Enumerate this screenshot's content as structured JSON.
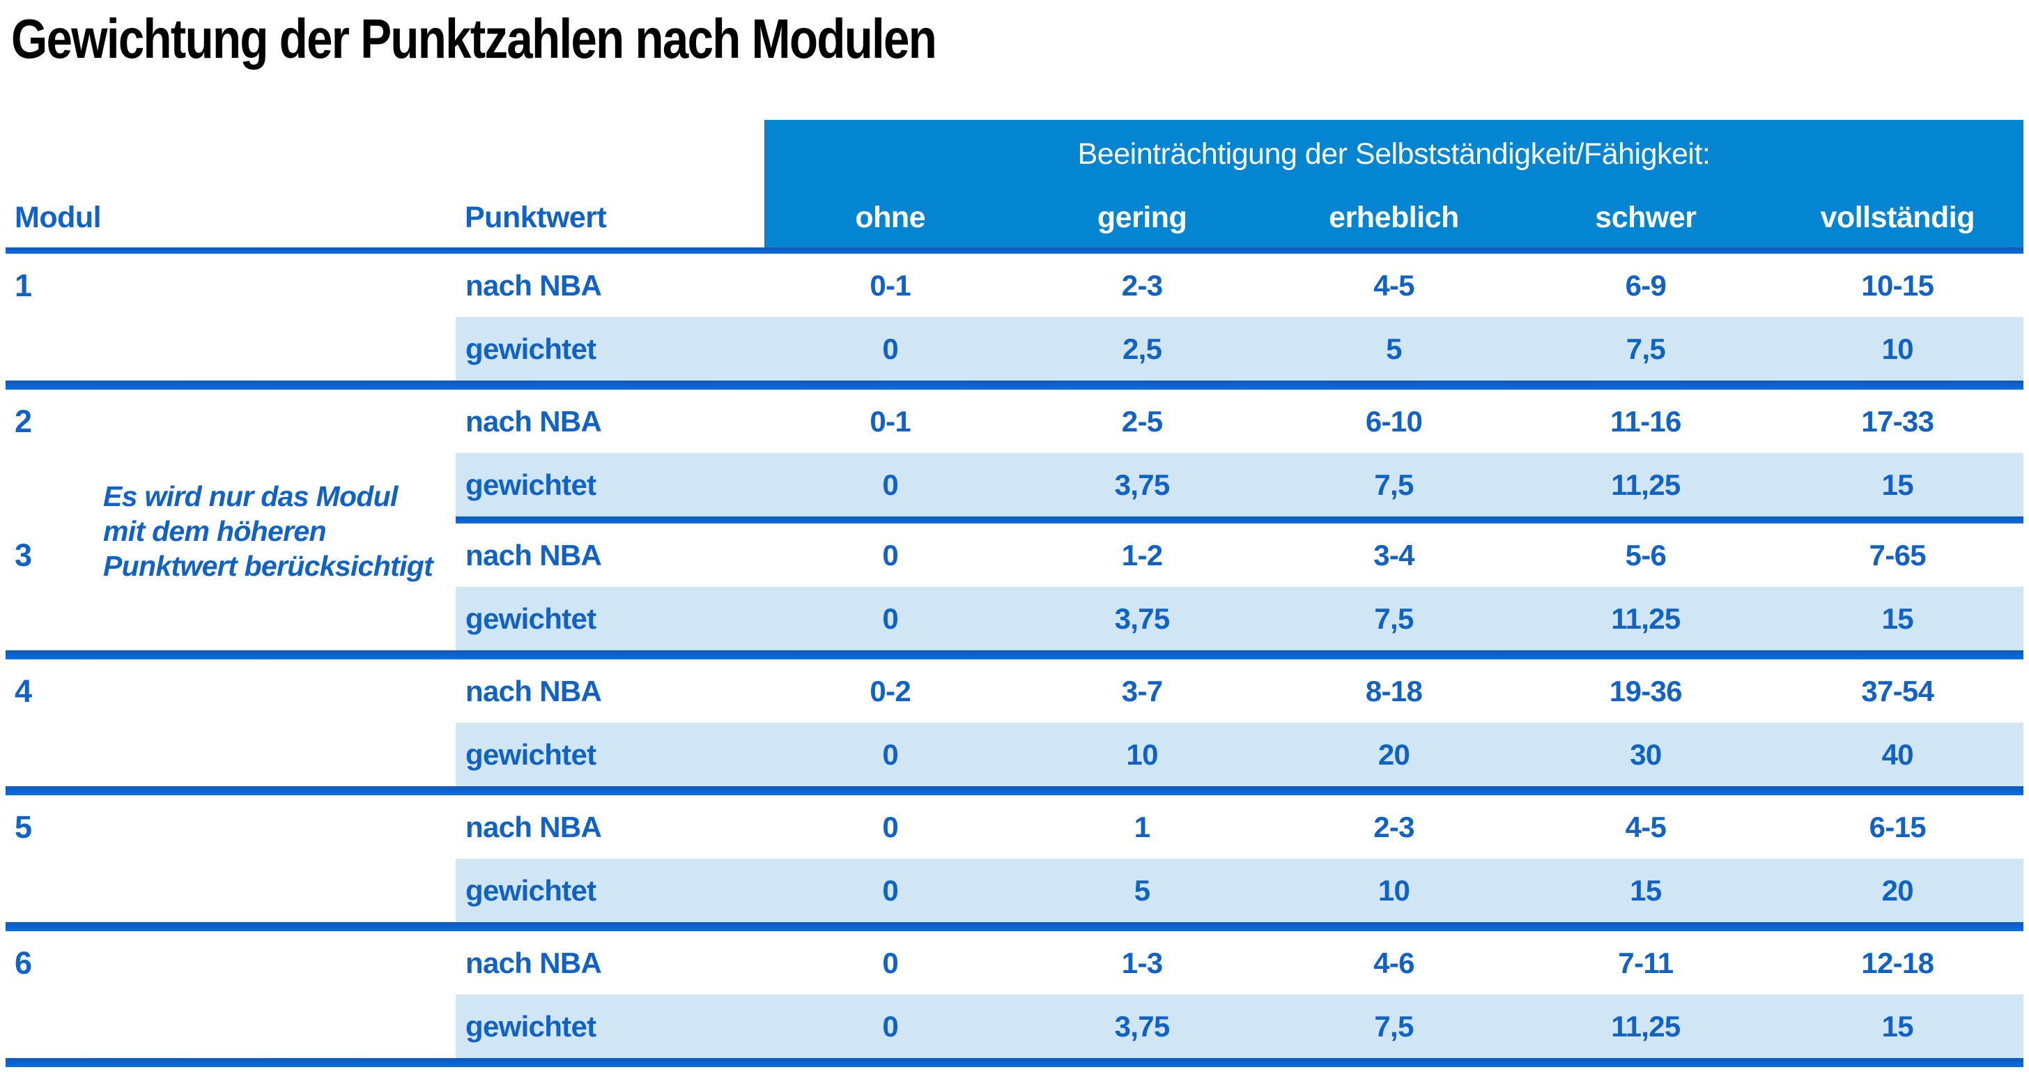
{
  "title": "Gewichtung der Punktzahlen nach Modulen",
  "header": {
    "modul": "Modul",
    "punktwert": "Punktwert",
    "group_label": "Beeinträchtigung der Selbstständigkeit/Fähigkeit:",
    "severity_columns": [
      "ohne",
      "gering",
      "erheblich",
      "schwer",
      "vollständig"
    ]
  },
  "labels": {
    "raw": "nach NBA",
    "weighted": "gewichtet"
  },
  "note_lines": [
    "Es wird nur das Modul",
    "mit dem höheren",
    "Punktwert berücksichtigt"
  ],
  "modules": [
    {
      "id": "1",
      "raw": [
        "0-1",
        "2-3",
        "4-5",
        "6-9",
        "10-15"
      ],
      "weighted": [
        "0",
        "2,5",
        "5",
        "7,5",
        "10"
      ]
    },
    {
      "id": "2",
      "raw": [
        "0-1",
        "2-5",
        "6-10",
        "11-16",
        "17-33"
      ],
      "weighted": [
        "0",
        "3,75",
        "7,5",
        "11,25",
        "15"
      ]
    },
    {
      "id": "3",
      "raw": [
        "0",
        "1-2",
        "3-4",
        "5-6",
        "7-65"
      ],
      "weighted": [
        "0",
        "3,75",
        "7,5",
        "11,25",
        "15"
      ]
    },
    {
      "id": "4",
      "raw": [
        "0-2",
        "3-7",
        "8-18",
        "19-36",
        "37-54"
      ],
      "weighted": [
        "0",
        "10",
        "20",
        "30",
        "40"
      ]
    },
    {
      "id": "5",
      "raw": [
        "0",
        "1",
        "2-3",
        "4-5",
        "6-15"
      ],
      "weighted": [
        "0",
        "5",
        "10",
        "15",
        "20"
      ]
    },
    {
      "id": "6",
      "raw": [
        "0",
        "1-3",
        "4-6",
        "7-11",
        "12-18"
      ],
      "weighted": [
        "0",
        "3,75",
        "7,5",
        "11,25",
        "15"
      ]
    }
  ],
  "colors": {
    "header_band": "#0385d2",
    "header_band_text": "#ffffff",
    "table_text": "#1062c6",
    "weighted_row_shade": "#d0e6f4",
    "separator": "#0d61cd",
    "title_text": "#000000"
  }
}
